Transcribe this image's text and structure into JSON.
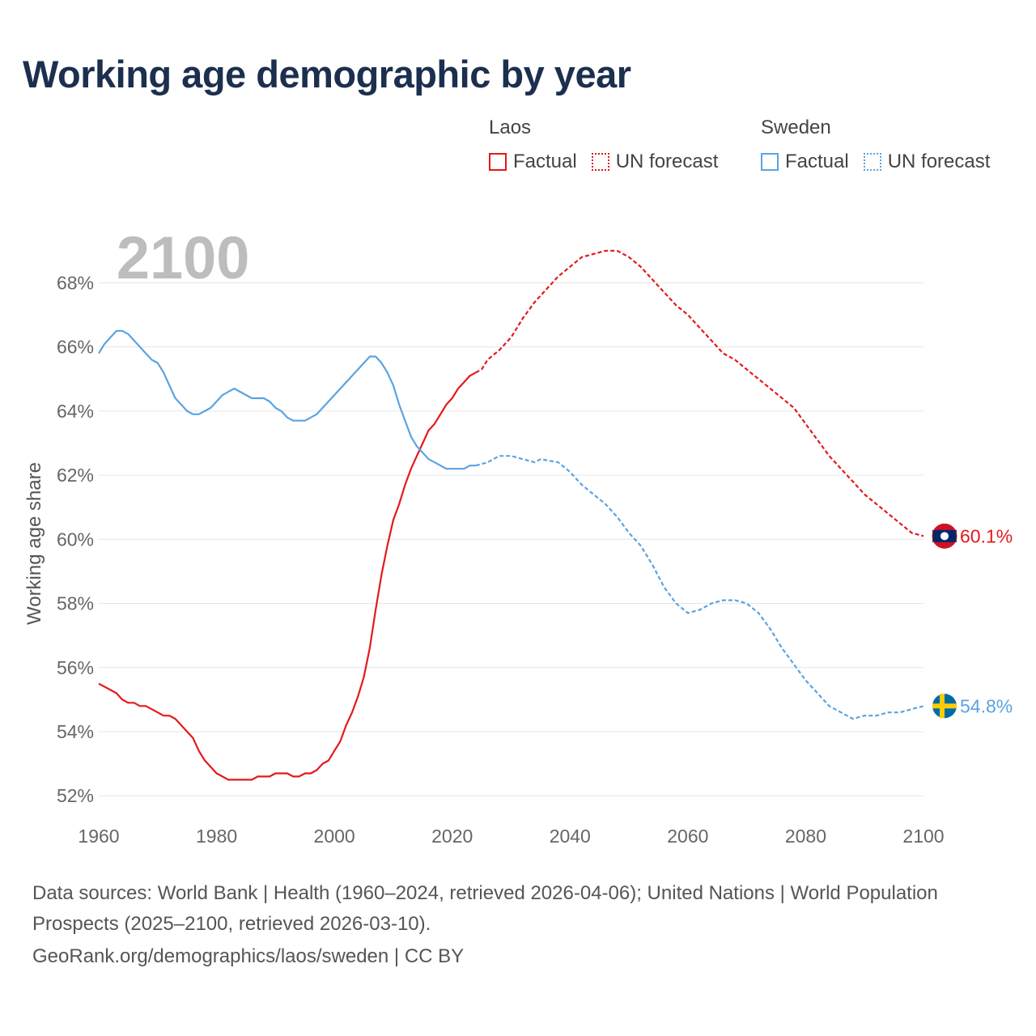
{
  "title": "Working age demographic by year",
  "legend": {
    "laos": {
      "title": "Laos",
      "factual": "Factual",
      "forecast": "UN forecast"
    },
    "sweden": {
      "title": "Sweden",
      "factual": "Factual",
      "forecast": "UN forecast"
    }
  },
  "colors": {
    "laos": "#e3191c",
    "sweden": "#5ba3e0",
    "title": "#1c2f4f",
    "year_watermark": "#bdbdbd"
  },
  "year_watermark": "2100",
  "sources": "Data sources: World Bank | Health (1960–2024, retrieved 2026-04-06); United Nations | World Population Prospects (2025–2100, retrieved 2026-03-10).",
  "url_line": "GeoRank.org/demographics/laos/sweden | CC BY",
  "chart_data": {
    "type": "line",
    "title": "Working age demographic by year",
    "xlabel": "",
    "ylabel": "Working age share",
    "xlim": [
      1960,
      2100
    ],
    "ylim": [
      51.5,
      69.5
    ],
    "x_ticks": [
      1960,
      1980,
      2000,
      2020,
      2040,
      2060,
      2080,
      2100
    ],
    "x_tick_labels": [
      "1960",
      "1980",
      "2000",
      "2020",
      "2040",
      "2060",
      "2080",
      "2100"
    ],
    "y_ticks": [
      52,
      54,
      56,
      58,
      60,
      62,
      64,
      66,
      68
    ],
    "y_tick_labels": [
      "52%",
      "54%",
      "56%",
      "58%",
      "60%",
      "62%",
      "64%",
      "66%",
      "68%"
    ],
    "grid": true,
    "factual_end_year": 2024,
    "series": [
      {
        "name": "Laos",
        "key": "laos",
        "flag": "laos",
        "end_label": "60.1%",
        "points": [
          [
            1960,
            55.5
          ],
          [
            1962,
            55.3
          ],
          [
            1963,
            55.2
          ],
          [
            1964,
            55.0
          ],
          [
            1965,
            54.9
          ],
          [
            1966,
            54.9
          ],
          [
            1967,
            54.8
          ],
          [
            1968,
            54.8
          ],
          [
            1970,
            54.6
          ],
          [
            1971,
            54.5
          ],
          [
            1972,
            54.5
          ],
          [
            1973,
            54.4
          ],
          [
            1974,
            54.2
          ],
          [
            1975,
            54.0
          ],
          [
            1976,
            53.8
          ],
          [
            1977,
            53.4
          ],
          [
            1978,
            53.1
          ],
          [
            1979,
            52.9
          ],
          [
            1980,
            52.7
          ],
          [
            1981,
            52.6
          ],
          [
            1982,
            52.5
          ],
          [
            1984,
            52.5
          ],
          [
            1986,
            52.5
          ],
          [
            1987,
            52.6
          ],
          [
            1989,
            52.6
          ],
          [
            1990,
            52.7
          ],
          [
            1992,
            52.7
          ],
          [
            1993,
            52.6
          ],
          [
            1994,
            52.6
          ],
          [
            1995,
            52.7
          ],
          [
            1996,
            52.7
          ],
          [
            1997,
            52.8
          ],
          [
            1998,
            53.0
          ],
          [
            1999,
            53.1
          ],
          [
            2000,
            53.4
          ],
          [
            2001,
            53.7
          ],
          [
            2002,
            54.2
          ],
          [
            2003,
            54.6
          ],
          [
            2004,
            55.1
          ],
          [
            2005,
            55.7
          ],
          [
            2006,
            56.6
          ],
          [
            2007,
            57.8
          ],
          [
            2008,
            58.9
          ],
          [
            2009,
            59.8
          ],
          [
            2010,
            60.6
          ],
          [
            2011,
            61.1
          ],
          [
            2012,
            61.7
          ],
          [
            2013,
            62.2
          ],
          [
            2014,
            62.6
          ],
          [
            2015,
            63.0
          ],
          [
            2016,
            63.4
          ],
          [
            2017,
            63.6
          ],
          [
            2018,
            63.9
          ],
          [
            2019,
            64.2
          ],
          [
            2020,
            64.4
          ],
          [
            2021,
            64.7
          ],
          [
            2022,
            64.9
          ],
          [
            2023,
            65.1
          ],
          [
            2024,
            65.2
          ],
          [
            2025,
            65.3
          ],
          [
            2026,
            65.6
          ],
          [
            2028,
            65.9
          ],
          [
            2030,
            66.3
          ],
          [
            2032,
            66.9
          ],
          [
            2034,
            67.4
          ],
          [
            2036,
            67.8
          ],
          [
            2038,
            68.2
          ],
          [
            2040,
            68.5
          ],
          [
            2042,
            68.8
          ],
          [
            2044,
            68.9
          ],
          [
            2046,
            69.0
          ],
          [
            2048,
            69.0
          ],
          [
            2050,
            68.8
          ],
          [
            2052,
            68.5
          ],
          [
            2054,
            68.1
          ],
          [
            2056,
            67.7
          ],
          [
            2058,
            67.3
          ],
          [
            2060,
            67.0
          ],
          [
            2062,
            66.6
          ],
          [
            2064,
            66.2
          ],
          [
            2066,
            65.8
          ],
          [
            2068,
            65.6
          ],
          [
            2070,
            65.3
          ],
          [
            2072,
            65.0
          ],
          [
            2074,
            64.7
          ],
          [
            2076,
            64.4
          ],
          [
            2078,
            64.1
          ],
          [
            2080,
            63.6
          ],
          [
            2082,
            63.1
          ],
          [
            2084,
            62.6
          ],
          [
            2086,
            62.2
          ],
          [
            2088,
            61.8
          ],
          [
            2090,
            61.4
          ],
          [
            2092,
            61.1
          ],
          [
            2094,
            60.8
          ],
          [
            2096,
            60.5
          ],
          [
            2098,
            60.2
          ],
          [
            2100,
            60.1
          ]
        ]
      },
      {
        "name": "Sweden",
        "key": "sweden",
        "flag": "sweden",
        "end_label": "54.8%",
        "points": [
          [
            1960,
            65.8
          ],
          [
            1961,
            66.1
          ],
          [
            1962,
            66.3
          ],
          [
            1963,
            66.5
          ],
          [
            1964,
            66.5
          ],
          [
            1965,
            66.4
          ],
          [
            1966,
            66.2
          ],
          [
            1967,
            66.0
          ],
          [
            1968,
            65.8
          ],
          [
            1969,
            65.6
          ],
          [
            1970,
            65.5
          ],
          [
            1971,
            65.2
          ],
          [
            1972,
            64.8
          ],
          [
            1973,
            64.4
          ],
          [
            1974,
            64.2
          ],
          [
            1975,
            64.0
          ],
          [
            1976,
            63.9
          ],
          [
            1977,
            63.9
          ],
          [
            1978,
            64.0
          ],
          [
            1979,
            64.1
          ],
          [
            1980,
            64.3
          ],
          [
            1981,
            64.5
          ],
          [
            1982,
            64.6
          ],
          [
            1983,
            64.7
          ],
          [
            1984,
            64.6
          ],
          [
            1985,
            64.5
          ],
          [
            1986,
            64.4
          ],
          [
            1987,
            64.4
          ],
          [
            1988,
            64.4
          ],
          [
            1989,
            64.3
          ],
          [
            1990,
            64.1
          ],
          [
            1991,
            64.0
          ],
          [
            1992,
            63.8
          ],
          [
            1993,
            63.7
          ],
          [
            1994,
            63.7
          ],
          [
            1995,
            63.7
          ],
          [
            1996,
            63.8
          ],
          [
            1997,
            63.9
          ],
          [
            1998,
            64.1
          ],
          [
            2000,
            64.5
          ],
          [
            2002,
            64.9
          ],
          [
            2004,
            65.3
          ],
          [
            2006,
            65.7
          ],
          [
            2007,
            65.7
          ],
          [
            2008,
            65.5
          ],
          [
            2009,
            65.2
          ],
          [
            2010,
            64.8
          ],
          [
            2011,
            64.2
          ],
          [
            2012,
            63.7
          ],
          [
            2013,
            63.2
          ],
          [
            2014,
            62.9
          ],
          [
            2015,
            62.7
          ],
          [
            2016,
            62.5
          ],
          [
            2017,
            62.4
          ],
          [
            2018,
            62.3
          ],
          [
            2019,
            62.2
          ],
          [
            2020,
            62.2
          ],
          [
            2021,
            62.2
          ],
          [
            2022,
            62.2
          ],
          [
            2023,
            62.3
          ],
          [
            2024,
            62.3
          ],
          [
            2026,
            62.4
          ],
          [
            2028,
            62.6
          ],
          [
            2030,
            62.6
          ],
          [
            2032,
            62.5
          ],
          [
            2034,
            62.4
          ],
          [
            2035,
            62.5
          ],
          [
            2038,
            62.4
          ],
          [
            2040,
            62.1
          ],
          [
            2042,
            61.7
          ],
          [
            2044,
            61.4
          ],
          [
            2046,
            61.1
          ],
          [
            2048,
            60.7
          ],
          [
            2050,
            60.2
          ],
          [
            2052,
            59.8
          ],
          [
            2054,
            59.2
          ],
          [
            2056,
            58.5
          ],
          [
            2058,
            58.0
          ],
          [
            2060,
            57.7
          ],
          [
            2062,
            57.8
          ],
          [
            2064,
            58.0
          ],
          [
            2066,
            58.1
          ],
          [
            2068,
            58.1
          ],
          [
            2070,
            58.0
          ],
          [
            2072,
            57.7
          ],
          [
            2074,
            57.2
          ],
          [
            2076,
            56.6
          ],
          [
            2078,
            56.1
          ],
          [
            2080,
            55.6
          ],
          [
            2082,
            55.2
          ],
          [
            2084,
            54.8
          ],
          [
            2086,
            54.6
          ],
          [
            2088,
            54.4
          ],
          [
            2090,
            54.5
          ],
          [
            2092,
            54.5
          ],
          [
            2094,
            54.6
          ],
          [
            2096,
            54.6
          ],
          [
            2098,
            54.7
          ],
          [
            2100,
            54.8
          ]
        ]
      }
    ]
  }
}
